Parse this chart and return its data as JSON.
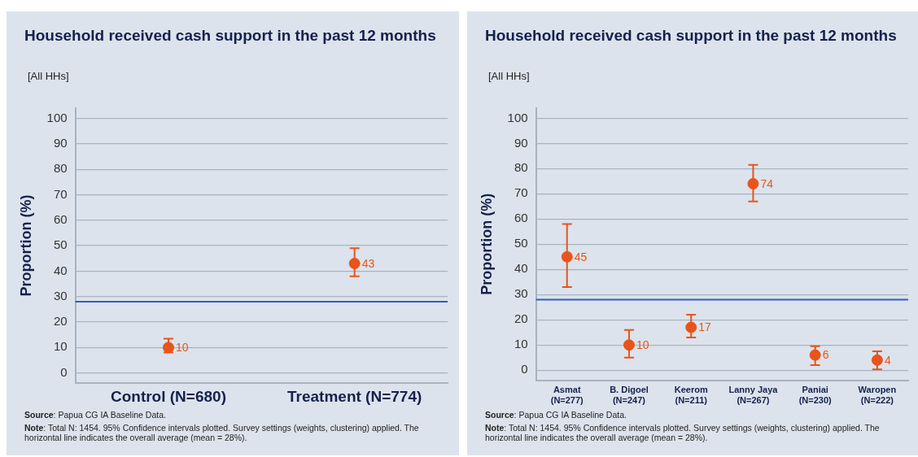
{
  "chart_data": [
    {
      "type": "scatter",
      "title": "Household received cash support in the past 12 months",
      "subtitle": "[All HHs]",
      "ylabel": "Proportion (%)",
      "categories": [
        "Control (N=680)",
        "Treatment (N=774)"
      ],
      "series": [
        {
          "color": "#e8541a",
          "values": [
            10,
            43
          ],
          "errors": [
            [
              8,
              13.5
            ],
            [
              38,
              49
            ]
          ]
        }
      ],
      "ylim": [
        -4,
        104
      ],
      "yticks": [
        0,
        10,
        20,
        30,
        40,
        50,
        60,
        70,
        80,
        90,
        100
      ],
      "grid": "y",
      "legend": false,
      "marker": "circle",
      "data_labels": true,
      "ref_lines": [
        {
          "axis": "y",
          "value": 28,
          "color": "#2f5fbf"
        }
      ],
      "annotations": [
        "Source: Papua CG IA Baseline Data.",
        "Note: Total N: 1454. 95% Confidence intervals plotted. Survey settings (weights, clustering) applied. The horizontal line indicates the overall average (mean = 28%)."
      ]
    },
    {
      "type": "scatter",
      "title": "Household received cash support in the past 12 months",
      "subtitle": "[All HHs]",
      "ylabel": "Proportion (%)",
      "categories": [
        "Asmat (N=277)",
        "B. Digoel (N=247)",
        "Keerom (N=211)",
        "Lanny Jaya (N=267)",
        "Paniai (N=230)",
        "Waropen (N=222)"
      ],
      "series": [
        {
          "color": "#e8541a",
          "values": [
            45,
            10,
            17,
            74,
            6,
            4
          ],
          "errors": [
            [
              33,
              58
            ],
            [
              5,
              16
            ],
            [
              13,
              22
            ],
            [
              67,
              81.5
            ],
            [
              2,
              9.5
            ],
            [
              0.3,
              7.5
            ]
          ]
        }
      ],
      "ylim": [
        -4,
        104
      ],
      "yticks": [
        0,
        10,
        20,
        30,
        40,
        50,
        60,
        70,
        80,
        90,
        100
      ],
      "grid": "y",
      "legend": false,
      "marker": "circle",
      "data_labels": true,
      "ref_lines": [
        {
          "axis": "y",
          "value": 28,
          "color": "#2f5fbf"
        }
      ],
      "annotations": [
        "Source: Papua CG IA Baseline Data.",
        "Note: Total N: 1454. 95% Confidence intervals plotted. Survey settings (weights, clustering) applied. The horizontal line indicates the overall average (mean = 28%)."
      ]
    }
  ]
}
